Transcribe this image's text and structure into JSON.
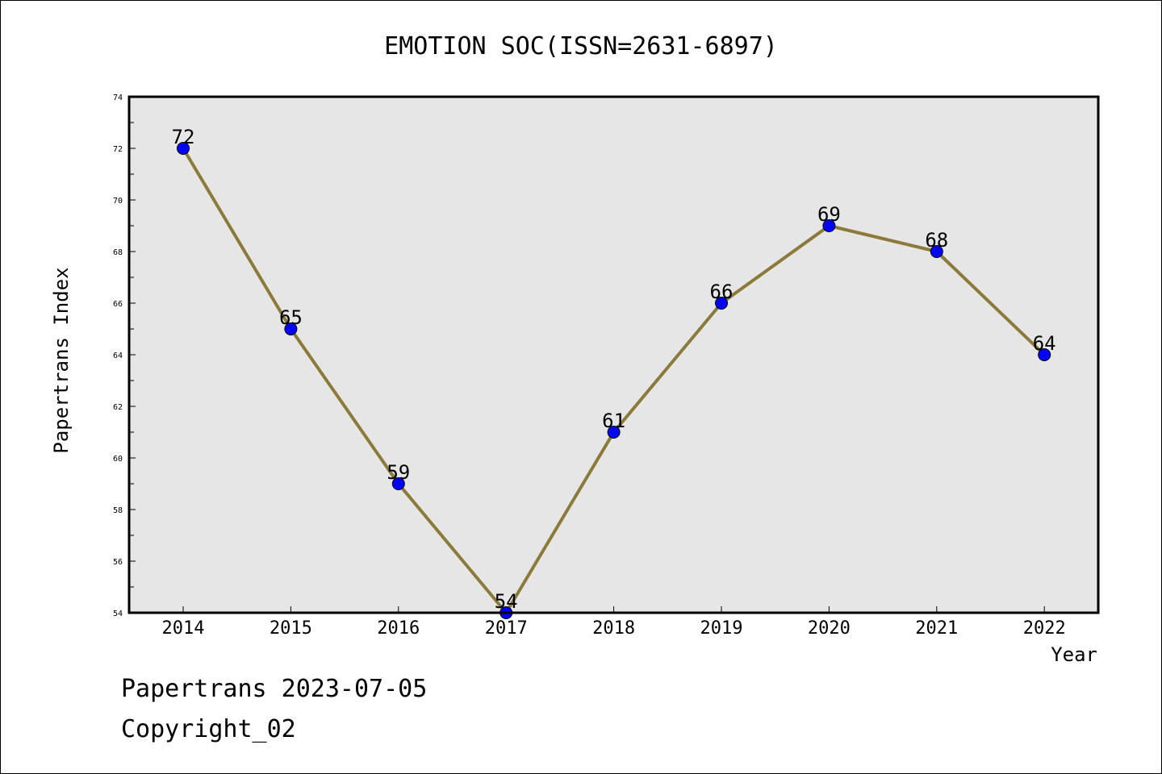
{
  "chart_data": {
    "type": "line",
    "title": "EMOTION SOC(ISSN=2631-6897)",
    "xlabel": "Year",
    "ylabel": "Papertrans Index",
    "categories": [
      "2014",
      "2015",
      "2016",
      "2017",
      "2018",
      "2019",
      "2020",
      "2021",
      "2022"
    ],
    "series": [
      {
        "values": [
          72,
          65,
          59,
          54,
          61,
          66,
          69,
          68,
          64
        ]
      }
    ],
    "ylim": [
      54,
      74
    ],
    "yticks": [
      "54",
      "56",
      "58",
      "60",
      "62",
      "64",
      "66",
      "68",
      "70",
      "72",
      "74"
    ],
    "grid": false,
    "colors": {
      "line": "#8b7a3a",
      "marker": "#0000ff",
      "plot_bg": "#e6e6e6"
    }
  },
  "footer": {
    "line1": "Papertrans 2023-07-05",
    "line2": "Copyright_02"
  }
}
